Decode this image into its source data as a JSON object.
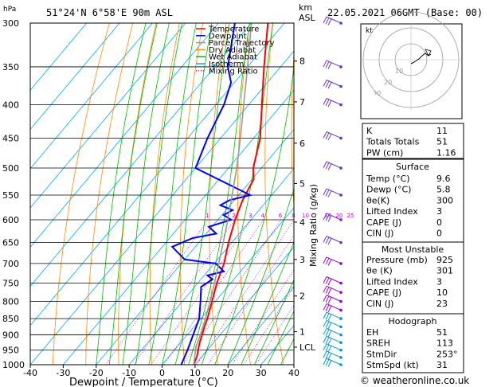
{
  "header": {
    "left": "51°24'N  6°58'E  90m  ASL",
    "right": "22.05.2021  06GMT  (Base: 00)",
    "hpa_unit": "hPa",
    "km_unit": "km",
    "asl_unit": "ASL"
  },
  "chart_data": {
    "type": "line",
    "xlabel": "Dewpoint / Temperature (°C)",
    "ylabel": "hPa",
    "right_axis_label": "Mixing Ratio (g/kg)",
    "xlim": [
      -40,
      40
    ],
    "ylim": [
      1000,
      300
    ],
    "x_ticks": [
      "-40",
      "-30",
      "-20",
      "-10",
      "0",
      "10",
      "20",
      "30",
      "40"
    ],
    "p_ticks": [
      "300",
      "350",
      "400",
      "450",
      "500",
      "550",
      "600",
      "650",
      "700",
      "750",
      "800",
      "850",
      "900",
      "950",
      "1000"
    ],
    "km_ticks": [
      {
        "p": 343,
        "label": "8"
      },
      {
        "p": 396,
        "label": "7"
      },
      {
        "p": 458,
        "label": "6"
      },
      {
        "p": 528,
        "label": "5"
      },
      {
        "p": 605,
        "label": "4"
      },
      {
        "p": 690,
        "label": "3"
      },
      {
        "p": 785,
        "label": "2"
      },
      {
        "p": 890,
        "label": "1"
      },
      {
        "p": 940,
        "label": "LCL"
      }
    ],
    "mixing_ratio_labels": [
      "1",
      "2",
      "3",
      "4",
      "6",
      "8",
      "10",
      "16",
      "20",
      "25"
    ],
    "legend": [
      {
        "name": "Temperature",
        "color": "#ff0000"
      },
      {
        "name": "Dewpoint",
        "color": "#0000ff"
      },
      {
        "name": "Parcel Trajectory",
        "color": "#999999"
      },
      {
        "name": "Dry Adiabat",
        "color": "#ff8c00"
      },
      {
        "name": "Wet Adiabat",
        "color": "#00bb00"
      },
      {
        "name": "Isotherm",
        "color": "#00aaff"
      },
      {
        "name": "Mixing Ratio",
        "color": "#cc00cc"
      }
    ],
    "series": [
      {
        "name": "Temperature",
        "color": "#ff0000",
        "points": [
          [
            1000,
            9.6
          ],
          [
            970,
            8.4
          ],
          [
            950,
            7.2
          ],
          [
            925,
            5.8
          ],
          [
            900,
            4.5
          ],
          [
            875,
            3.2
          ],
          [
            850,
            2.0
          ],
          [
            800,
            -1.0
          ],
          [
            750,
            -4.2
          ],
          [
            700,
            -7.0
          ],
          [
            650,
            -11.0
          ],
          [
            600,
            -14.8
          ],
          [
            560,
            -17.5
          ],
          [
            540,
            -18.5
          ],
          [
            520,
            -19.5
          ],
          [
            500,
            -22.5
          ],
          [
            450,
            -28.0
          ],
          [
            400,
            -36.0
          ],
          [
            350,
            -45.0
          ],
          [
            300,
            -55.0
          ]
        ]
      },
      {
        "name": "Dewpoint",
        "color": "#0000ff",
        "points": [
          [
            1000,
            5.8
          ],
          [
            950,
            4.0
          ],
          [
            900,
            1.8
          ],
          [
            850,
            -0.5
          ],
          [
            800,
            -4.5
          ],
          [
            760,
            -8.0
          ],
          [
            740,
            -6.5
          ],
          [
            730,
            -9.0
          ],
          [
            720,
            -5.0
          ],
          [
            700,
            -9.5
          ],
          [
            690,
            -20.0
          ],
          [
            660,
            -27.0
          ],
          [
            640,
            -23.0
          ],
          [
            630,
            -17.0
          ],
          [
            615,
            -21.0
          ],
          [
            600,
            -16.0
          ],
          [
            590,
            -19.5
          ],
          [
            580,
            -18.0
          ],
          [
            570,
            -23.0
          ],
          [
            560,
            -21.5
          ],
          [
            550,
            -16.5
          ],
          [
            500,
            -40.0
          ],
          [
            450,
            -44.0
          ],
          [
            400,
            -47.5
          ],
          [
            370,
            -51.0
          ],
          [
            350,
            -56.0
          ],
          [
            300,
            -65.0
          ]
        ]
      },
      {
        "name": "Parcel Trajectory",
        "color": "#999999",
        "points": [
          [
            1000,
            9.6
          ],
          [
            940,
            5.8
          ],
          [
            900,
            4.0
          ],
          [
            850,
            1.4
          ],
          [
            800,
            -1.6
          ],
          [
            750,
            -4.9
          ],
          [
            700,
            -8.6
          ],
          [
            650,
            -12.6
          ],
          [
            600,
            -17.0
          ],
          [
            550,
            -22.0
          ],
          [
            500,
            -27.5
          ],
          [
            450,
            -34.0
          ],
          [
            400,
            -41.5
          ],
          [
            350,
            -50.0
          ],
          [
            300,
            -60.0
          ]
        ]
      }
    ],
    "wind_barbs_p": [
      1000,
      975,
      950,
      925,
      900,
      875,
      850,
      825,
      800,
      775,
      750,
      700,
      650,
      600,
      550,
      500,
      450,
      400,
      375,
      350,
      300
    ],
    "hodograph": {
      "unit": "kt",
      "ring_labels": [
        "10",
        "20",
        "30"
      ]
    },
    "indices": [
      {
        "label": "K",
        "value": "11"
      },
      {
        "label": "Totals Totals",
        "value": "51"
      },
      {
        "label": "PW (cm)",
        "value": "1.16"
      }
    ],
    "surface": {
      "title": "Surface",
      "rows": [
        {
          "label": "Temp (°C)",
          "value": "9.6"
        },
        {
          "label": "Dewp (°C)",
          "value": "5.8"
        },
        {
          "label": "θe(K)",
          "value": "300"
        },
        {
          "label": "Lifted Index",
          "value": "3"
        },
        {
          "label": "CAPE (J)",
          "value": "0"
        },
        {
          "label": "CIN (J)",
          "value": "0"
        }
      ]
    },
    "most_unstable": {
      "title": "Most Unstable",
      "rows": [
        {
          "label": "Pressure (mb)",
          "value": "925"
        },
        {
          "label": "θe (K)",
          "value": "301"
        },
        {
          "label": "Lifted Index",
          "value": "3"
        },
        {
          "label": "CAPE (J)",
          "value": "10"
        },
        {
          "label": "CIN (J)",
          "value": "23"
        }
      ]
    },
    "hodograph_table": {
      "title": "Hodograph",
      "rows": [
        {
          "label": "EH",
          "value": "51"
        },
        {
          "label": "SREH",
          "value": "113"
        },
        {
          "label": "StmDir",
          "value": "253°"
        },
        {
          "label": "StmSpd (kt)",
          "value": "31"
        }
      ]
    }
  },
  "footer": {
    "credit": "© weatheronline.co.uk"
  },
  "colors": {
    "temperature": "#ff0000",
    "dewpoint": "#0000ff",
    "parcel": "#999999",
    "dry_adiabat": "#ff8c00",
    "wet_adiabat": "#00bb00",
    "isotherm": "#00aaff",
    "mixing_ratio": "#cc00cc"
  }
}
